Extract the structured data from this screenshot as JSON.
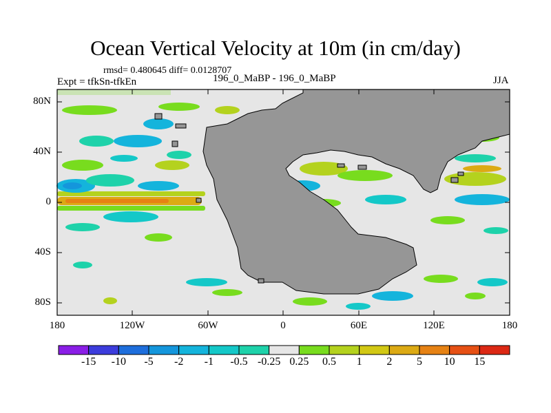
{
  "title": "Ocean Vertical Velocity at 10m (in cm/day)",
  "stats": "rmsd= 0.480645 diff= 0.0128707",
  "expt": "Expt = tfkSn-tfkEn",
  "center": "196_0_MaBP - 196_0_MaBP",
  "season": "JJA",
  "lat_labels": [
    "80N",
    "40N",
    "0",
    "40S",
    "80S"
  ],
  "lon_labels": [
    "180",
    "120W",
    "60W",
    "0",
    "60E",
    "120E",
    "180"
  ],
  "colorbar": {
    "labels": [
      "-15",
      "-10",
      "-5",
      "-2",
      "-1",
      "-0.5",
      "-0.25",
      "0.25",
      "0.5",
      "1",
      "2",
      "5",
      "10",
      "15"
    ],
    "colors": [
      "#8a1ee6",
      "#3c3cdc",
      "#1e6edc",
      "#1496dc",
      "#14b4dc",
      "#14c8c8",
      "#1ed2aa",
      "#e6e6e6",
      "#78dc1e",
      "#b4d21e",
      "#d2c814",
      "#dcaa14",
      "#e68214",
      "#e65014",
      "#dc2814"
    ]
  },
  "map": {
    "land_color": "#969696",
    "ocean_color": "#e6e6e6"
  }
}
